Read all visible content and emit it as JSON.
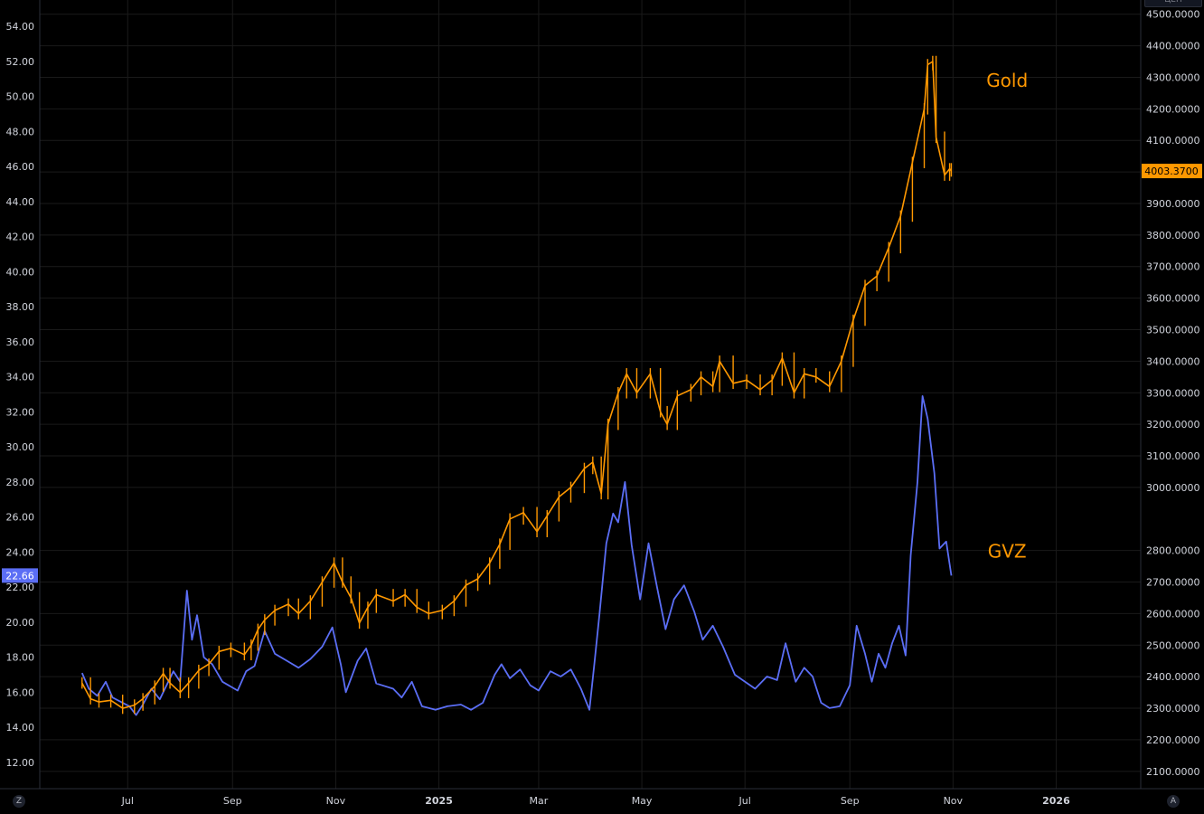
{
  "colors": {
    "background": "#000000",
    "grid": "#1a1a1a",
    "axis_text": "#d1d4dc",
    "gold": "#ff9800",
    "gvz": "#5b6ef5",
    "gold_label_bg": "#ff9800",
    "gvz_label_bg": "#5b6ef5"
  },
  "corner_buttons": {
    "left": "Z",
    "right": "A"
  },
  "scale_box_label": "ЦЕН",
  "chart_data": {
    "type": "line",
    "title": "",
    "x_axis": {
      "ticks": [
        {
          "label": "Jul",
          "date": "2024-07-01"
        },
        {
          "label": "Sep",
          "date": "2024-09-01"
        },
        {
          "label": "Nov",
          "date": "2024-11-01"
        },
        {
          "label": "2025",
          "date": "2025-01-01"
        },
        {
          "label": "Mar",
          "date": "2025-03-01"
        },
        {
          "label": "May",
          "date": "2025-05-01"
        },
        {
          "label": "Jul",
          "date": "2025-07-01"
        },
        {
          "label": "Sep",
          "date": "2025-09-01"
        },
        {
          "label": "Nov",
          "date": "2025-11-01"
        },
        {
          "label": "2026",
          "date": "2026-01-01"
        }
      ],
      "range": [
        "2024-05-10",
        "2026-02-20"
      ]
    },
    "left_axis": {
      "ticks": [
        "12.00",
        "14.00",
        "16.00",
        "18.00",
        "20.00",
        "22.00",
        "24.00",
        "26.00",
        "28.00",
        "30.00",
        "32.00",
        "34.00",
        "36.00",
        "38.00",
        "40.00",
        "42.00",
        "44.00",
        "46.00",
        "48.00",
        "50.00",
        "52.00",
        "54.00"
      ],
      "range": [
        10.5,
        55.5
      ]
    },
    "right_axis": {
      "ticks": [
        "2100.0000",
        "2200.0000",
        "2300.0000",
        "2400.0000",
        "2500.0000",
        "2600.0000",
        "2700.0000",
        "2800.0000",
        "3000.0000",
        "3100.0000",
        "3200.0000",
        "3300.0000",
        "3400.0000",
        "3500.0000",
        "3600.0000",
        "3700.0000",
        "3800.0000",
        "3900.0000",
        "4000.0000",
        "4100.0000",
        "4200.0000",
        "4300.0000",
        "4400.0000",
        "4500.0000"
      ],
      "range": [
        2045,
        4545
      ]
    },
    "grid": true,
    "series": [
      {
        "name": "Gold",
        "axis": "right",
        "last_value_label": "4003.3700",
        "points": [
          [
            "2024-06-04",
            2380
          ],
          [
            "2024-06-09",
            2330
          ],
          [
            "2024-06-14",
            2320
          ],
          [
            "2024-06-21",
            2325
          ],
          [
            "2024-06-28",
            2300
          ],
          [
            "2024-07-05",
            2310
          ],
          [
            "2024-07-10",
            2330
          ],
          [
            "2024-07-17",
            2370
          ],
          [
            "2024-07-22",
            2410
          ],
          [
            "2024-07-26",
            2380
          ],
          [
            "2024-08-01",
            2350
          ],
          [
            "2024-08-06",
            2380
          ],
          [
            "2024-08-12",
            2420
          ],
          [
            "2024-08-18",
            2440
          ],
          [
            "2024-08-24",
            2480
          ],
          [
            "2024-08-31",
            2490
          ],
          [
            "2024-09-08",
            2470
          ],
          [
            "2024-09-12",
            2500
          ],
          [
            "2024-09-16",
            2550
          ],
          [
            "2024-09-20",
            2580
          ],
          [
            "2024-09-26",
            2610
          ],
          [
            "2024-10-04",
            2630
          ],
          [
            "2024-10-10",
            2600
          ],
          [
            "2024-10-17",
            2640
          ],
          [
            "2024-10-24",
            2700
          ],
          [
            "2024-10-31",
            2760
          ],
          [
            "2024-11-05",
            2700
          ],
          [
            "2024-11-10",
            2650
          ],
          [
            "2024-11-15",
            2570
          ],
          [
            "2024-11-20",
            2620
          ],
          [
            "2024-11-25",
            2660
          ],
          [
            "2024-12-05",
            2640
          ],
          [
            "2024-12-12",
            2660
          ],
          [
            "2024-12-19",
            2620
          ],
          [
            "2024-12-26",
            2600
          ],
          [
            "2025-01-03",
            2610
          ],
          [
            "2025-01-10",
            2640
          ],
          [
            "2025-01-17",
            2690
          ],
          [
            "2025-01-24",
            2710
          ],
          [
            "2025-01-31",
            2760
          ],
          [
            "2025-02-06",
            2820
          ],
          [
            "2025-02-12",
            2900
          ],
          [
            "2025-02-20",
            2920
          ],
          [
            "2025-02-28",
            2860
          ],
          [
            "2025-03-06",
            2910
          ],
          [
            "2025-03-13",
            2970
          ],
          [
            "2025-03-20",
            3000
          ],
          [
            "2025-03-28",
            3060
          ],
          [
            "2025-04-02",
            3080
          ],
          [
            "2025-04-07",
            2980
          ],
          [
            "2025-04-11",
            3200
          ],
          [
            "2025-04-17",
            3300
          ],
          [
            "2025-04-22",
            3360
          ],
          [
            "2025-04-28",
            3300
          ],
          [
            "2025-05-06",
            3360
          ],
          [
            "2025-05-12",
            3240
          ],
          [
            "2025-05-16",
            3200
          ],
          [
            "2025-05-22",
            3290
          ],
          [
            "2025-05-30",
            3310
          ],
          [
            "2025-06-05",
            3350
          ],
          [
            "2025-06-12",
            3320
          ],
          [
            "2025-06-16",
            3400
          ],
          [
            "2025-06-24",
            3330
          ],
          [
            "2025-07-02",
            3340
          ],
          [
            "2025-07-10",
            3310
          ],
          [
            "2025-07-17",
            3340
          ],
          [
            "2025-07-23",
            3410
          ],
          [
            "2025-07-30",
            3300
          ],
          [
            "2025-08-05",
            3360
          ],
          [
            "2025-08-12",
            3350
          ],
          [
            "2025-08-20",
            3320
          ],
          [
            "2025-08-27",
            3400
          ],
          [
            "2025-09-03",
            3530
          ],
          [
            "2025-09-10",
            3640
          ],
          [
            "2025-09-17",
            3670
          ],
          [
            "2025-09-24",
            3760
          ],
          [
            "2025-10-01",
            3860
          ],
          [
            "2025-10-08",
            4030
          ],
          [
            "2025-10-15",
            4200
          ],
          [
            "2025-10-17",
            4340
          ],
          [
            "2025-10-20",
            4350
          ],
          [
            "2025-10-22",
            4110
          ],
          [
            "2025-10-27",
            3990
          ],
          [
            "2025-10-30",
            4010
          ],
          [
            "2025-10-31",
            4003
          ]
        ]
      },
      {
        "name": "GVZ",
        "axis": "left",
        "last_value_label": "22.66",
        "points": [
          [
            "2024-06-04",
            17.1
          ],
          [
            "2024-06-08",
            16.2
          ],
          [
            "2024-06-13",
            15.8
          ],
          [
            "2024-06-18",
            16.6
          ],
          [
            "2024-06-22",
            15.7
          ],
          [
            "2024-06-26",
            15.5
          ],
          [
            "2024-07-02",
            15.2
          ],
          [
            "2024-07-06",
            14.7
          ],
          [
            "2024-07-10",
            15.3
          ],
          [
            "2024-07-15",
            16.2
          ],
          [
            "2024-07-20",
            15.6
          ],
          [
            "2024-07-24",
            16.4
          ],
          [
            "2024-07-28",
            17.2
          ],
          [
            "2024-08-01",
            16.6
          ],
          [
            "2024-08-05",
            21.8
          ],
          [
            "2024-08-08",
            19.0
          ],
          [
            "2024-08-11",
            20.4
          ],
          [
            "2024-08-15",
            18.0
          ],
          [
            "2024-08-20",
            17.6
          ],
          [
            "2024-08-26",
            16.6
          ],
          [
            "2024-09-04",
            16.1
          ],
          [
            "2024-09-09",
            17.2
          ],
          [
            "2024-09-14",
            17.5
          ],
          [
            "2024-09-20",
            19.5
          ],
          [
            "2024-09-26",
            18.2
          ],
          [
            "2024-10-03",
            17.8
          ],
          [
            "2024-10-10",
            17.4
          ],
          [
            "2024-10-17",
            17.9
          ],
          [
            "2024-10-24",
            18.6
          ],
          [
            "2024-10-30",
            19.7
          ],
          [
            "2024-11-04",
            17.6
          ],
          [
            "2024-11-07",
            16.0
          ],
          [
            "2024-11-14",
            17.8
          ],
          [
            "2024-11-19",
            18.5
          ],
          [
            "2024-11-25",
            16.5
          ],
          [
            "2024-12-05",
            16.2
          ],
          [
            "2024-12-10",
            15.7
          ],
          [
            "2024-12-16",
            16.6
          ],
          [
            "2024-12-22",
            15.2
          ],
          [
            "2024-12-30",
            15.0
          ],
          [
            "2025-01-06",
            15.2
          ],
          [
            "2025-01-14",
            15.3
          ],
          [
            "2025-01-20",
            15.0
          ],
          [
            "2025-01-27",
            15.4
          ],
          [
            "2025-02-03",
            17.0
          ],
          [
            "2025-02-07",
            17.6
          ],
          [
            "2025-02-12",
            16.8
          ],
          [
            "2025-02-18",
            17.3
          ],
          [
            "2025-02-24",
            16.4
          ],
          [
            "2025-03-01",
            16.1
          ],
          [
            "2025-03-08",
            17.2
          ],
          [
            "2025-03-14",
            16.9
          ],
          [
            "2025-03-20",
            17.3
          ],
          [
            "2025-03-26",
            16.2
          ],
          [
            "2025-03-31",
            15.0
          ],
          [
            "2025-04-03",
            17.7
          ],
          [
            "2025-04-06",
            20.5
          ],
          [
            "2025-04-10",
            24.5
          ],
          [
            "2025-04-14",
            26.2
          ],
          [
            "2025-04-17",
            25.7
          ],
          [
            "2025-04-21",
            28.0
          ],
          [
            "2025-04-25",
            24.4
          ],
          [
            "2025-04-30",
            21.3
          ],
          [
            "2025-05-05",
            24.5
          ],
          [
            "2025-05-10",
            22.0
          ],
          [
            "2025-05-15",
            19.6
          ],
          [
            "2025-05-20",
            21.3
          ],
          [
            "2025-05-26",
            22.1
          ],
          [
            "2025-06-01",
            20.6
          ],
          [
            "2025-06-06",
            19.0
          ],
          [
            "2025-06-12",
            19.8
          ],
          [
            "2025-06-18",
            18.6
          ],
          [
            "2025-06-25",
            17.0
          ],
          [
            "2025-07-01",
            16.6
          ],
          [
            "2025-07-07",
            16.2
          ],
          [
            "2025-07-14",
            16.9
          ],
          [
            "2025-07-20",
            16.7
          ],
          [
            "2025-07-25",
            18.8
          ],
          [
            "2025-07-31",
            16.6
          ],
          [
            "2025-08-05",
            17.4
          ],
          [
            "2025-08-10",
            16.9
          ],
          [
            "2025-08-15",
            15.4
          ],
          [
            "2025-08-20",
            15.1
          ],
          [
            "2025-08-26",
            15.2
          ],
          [
            "2025-09-01",
            16.4
          ],
          [
            "2025-09-05",
            19.8
          ],
          [
            "2025-09-10",
            18.2
          ],
          [
            "2025-09-14",
            16.6
          ],
          [
            "2025-09-18",
            18.2
          ],
          [
            "2025-09-22",
            17.4
          ],
          [
            "2025-09-26",
            18.8
          ],
          [
            "2025-09-30",
            19.8
          ],
          [
            "2025-10-04",
            18.1
          ],
          [
            "2025-10-07",
            23.8
          ],
          [
            "2025-10-11",
            28.0
          ],
          [
            "2025-10-14",
            32.9
          ],
          [
            "2025-10-17",
            31.6
          ],
          [
            "2025-10-21",
            28.5
          ],
          [
            "2025-10-24",
            24.2
          ],
          [
            "2025-10-28",
            24.6
          ],
          [
            "2025-10-31",
            22.66
          ]
        ]
      }
    ],
    "annotations": [
      {
        "text": "Gold",
        "color": "#ff9800",
        "date": "2025-12-03",
        "value": 4290,
        "axis": "right"
      },
      {
        "text": "GVZ",
        "color": "#ff9800",
        "date": "2025-12-03",
        "value": 2797,
        "axis": "right"
      }
    ],
    "legend": "none"
  }
}
